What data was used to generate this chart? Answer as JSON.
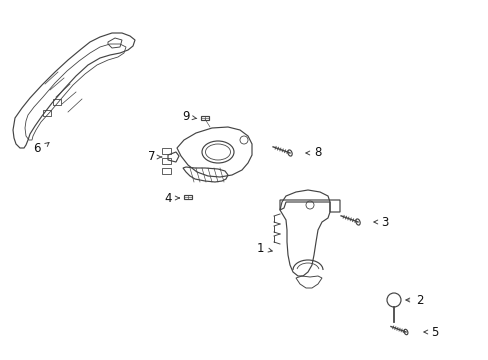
{
  "bg_color": "#ffffff",
  "line_color": "#444444",
  "label_color": "#111111",
  "font_size": 8.5,
  "lw": 0.85
}
